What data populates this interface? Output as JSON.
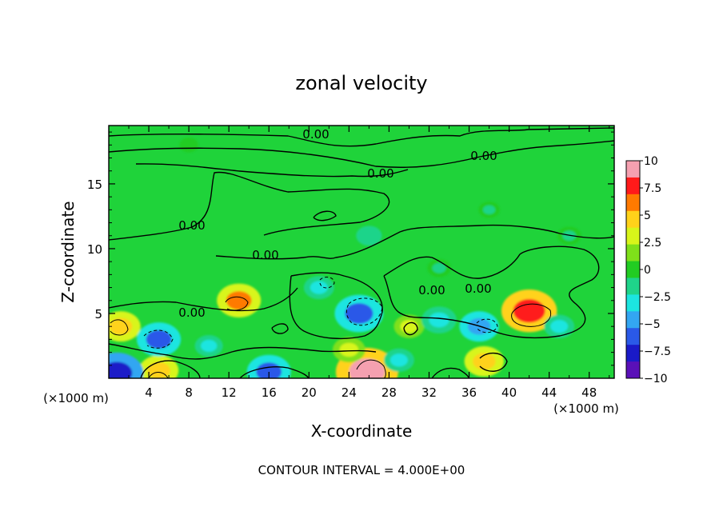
{
  "chart_data": {
    "type": "heatmap",
    "title": "zonal velocity",
    "xlabel": "X-coordinate",
    "ylabel": "Z-coordinate",
    "x_unit": "(×1000 m)",
    "y_unit": "(×1000 m)",
    "xlim": [
      0,
      50.5
    ],
    "ylim": [
      0,
      19.5
    ],
    "x_ticks": [
      "4",
      "8",
      "12",
      "16",
      "20",
      "24",
      "28",
      "32",
      "36",
      "40",
      "44",
      "48"
    ],
    "y_ticks": [
      "5",
      "10",
      "15"
    ],
    "footer": "CONTOUR INTERVAL = 4.000E+00",
    "contour_label": "0.00",
    "colorbar": {
      "min": -10,
      "max": 10,
      "tick_labels": [
        "10",
        "7.5",
        "5",
        "2.5",
        "0",
        "−2.5",
        "−5",
        "−7.5",
        "−10"
      ],
      "colors": [
        "#f5a0b0",
        "#ff1a1a",
        "#ff7a00",
        "#ffd21a",
        "#d8f51a",
        "#7fe01a",
        "#22cc22",
        "#1fd48a",
        "#1ce5e0",
        "#33a6f2",
        "#2a59e8",
        "#1a1ac8",
        "#5a10b8"
      ]
    },
    "features": [
      {
        "x": 42,
        "z": 5.2,
        "value": 8.5
      },
      {
        "x": 25.8,
        "z": 0.5,
        "value": 10
      },
      {
        "x": 13,
        "z": 6,
        "value": 6
      },
      {
        "x": 1.2,
        "z": 4,
        "value": 5
      },
      {
        "x": 5,
        "z": 0.6,
        "value": 5
      },
      {
        "x": 37.5,
        "z": 1.3,
        "value": 5
      },
      {
        "x": 24,
        "z": 2.2,
        "value": 3.5
      },
      {
        "x": 30,
        "z": 4,
        "value": 3
      },
      {
        "x": 25,
        "z": 5,
        "value": -7
      },
      {
        "x": 5,
        "z": 3,
        "value": -6
      },
      {
        "x": 0.8,
        "z": 0.4,
        "value": -8
      },
      {
        "x": 16,
        "z": 0.5,
        "value": -6
      },
      {
        "x": 37,
        "z": 4,
        "value": -5
      },
      {
        "x": 33,
        "z": 4.5,
        "value": -4
      },
      {
        "x": 21,
        "z": 7,
        "value": -3
      },
      {
        "x": 45,
        "z": 4,
        "value": -3
      },
      {
        "x": 29,
        "z": 1.4,
        "value": -3
      },
      {
        "x": 10,
        "z": 2.5,
        "value": -2.5
      },
      {
        "x": 26,
        "z": 11,
        "value": -2
      },
      {
        "x": 33,
        "z": 8.5,
        "value": -1.5
      },
      {
        "x": 46,
        "z": 11,
        "value": -1.5
      },
      {
        "x": 8,
        "z": 18,
        "value": 0.5
      },
      {
        "x": 38,
        "z": 13,
        "value": -1
      }
    ]
  }
}
